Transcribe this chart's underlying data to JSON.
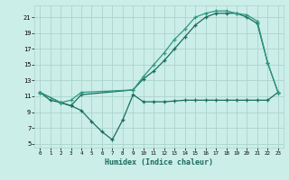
{
  "xlabel": "Humidex (Indice chaleur)",
  "bg_color": "#cceee8",
  "grid_color": "#aad4cc",
  "line_color1": "#1a6b5e",
  "line_color2": "#1a6b5e",
  "line_color3": "#2d9980",
  "xlim": [
    -0.5,
    23.5
  ],
  "ylim": [
    4.5,
    22.5
  ],
  "yticks": [
    5,
    7,
    9,
    11,
    13,
    15,
    17,
    19,
    21
  ],
  "xticks": [
    0,
    1,
    2,
    3,
    4,
    5,
    6,
    7,
    8,
    9,
    10,
    11,
    12,
    13,
    14,
    15,
    16,
    17,
    18,
    19,
    20,
    21,
    22,
    23
  ],
  "s1_x": [
    0,
    1,
    2,
    3,
    4,
    5,
    6,
    7,
    8,
    9,
    10,
    11,
    12,
    13,
    14,
    15,
    16,
    17,
    18,
    19,
    20,
    21,
    22,
    23
  ],
  "s1_y": [
    11.5,
    10.5,
    10.2,
    9.8,
    9.2,
    7.8,
    6.5,
    5.5,
    8.0,
    11.2,
    10.3,
    10.3,
    10.3,
    10.4,
    10.5,
    10.5,
    10.5,
    10.5,
    10.5,
    10.5,
    10.5,
    10.5,
    10.5,
    11.5
  ],
  "s2_x": [
    0,
    2,
    3,
    4,
    9,
    10,
    11,
    12,
    13,
    14,
    15,
    16,
    17,
    18,
    19,
    20,
    21,
    22,
    23
  ],
  "s2_y": [
    11.5,
    10.2,
    9.8,
    11.2,
    11.8,
    13.2,
    14.2,
    15.5,
    17.0,
    18.5,
    20.0,
    21.0,
    21.5,
    21.5,
    21.5,
    21.0,
    20.2,
    15.2,
    11.5
  ],
  "s3_x": [
    0,
    2,
    3,
    4,
    9,
    10,
    11,
    12,
    13,
    14,
    15,
    16,
    17,
    18,
    19,
    20,
    21,
    22,
    23
  ],
  "s3_y": [
    11.5,
    10.2,
    10.5,
    11.5,
    11.8,
    13.5,
    15.0,
    16.5,
    18.2,
    19.5,
    21.0,
    21.5,
    21.8,
    21.8,
    21.5,
    21.3,
    20.5,
    15.2,
    11.5
  ]
}
